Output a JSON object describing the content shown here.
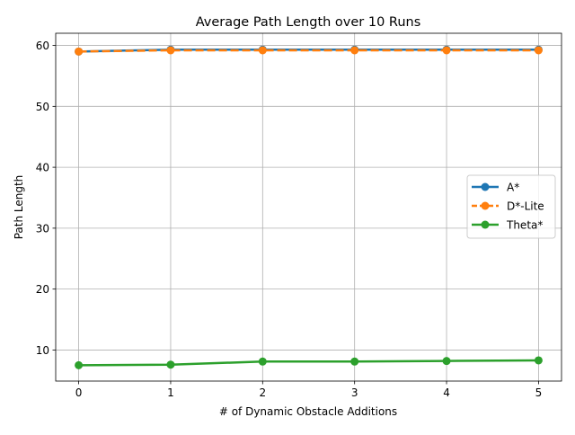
{
  "chart_data": {
    "type": "line",
    "title": "Average Path Length over 10 Runs",
    "xlabel": "# of Dynamic Obstacle Additions",
    "ylabel": "Path Length",
    "x": [
      0,
      1,
      2,
      3,
      4,
      5
    ],
    "xticks": [
      "0",
      "1",
      "2",
      "3",
      "4",
      "5"
    ],
    "yticks": [
      "10",
      "20",
      "30",
      "40",
      "50",
      "60"
    ],
    "xlim": [
      -0.25,
      5.25
    ],
    "ylim": [
      4.9,
      62.0
    ],
    "grid": true,
    "legend_position": "center-right",
    "series": [
      {
        "name": "A*",
        "color": "#1f77b4",
        "linestyle": "solid",
        "marker": "circle",
        "values": [
          59.0,
          59.3,
          59.3,
          59.3,
          59.3,
          59.3
        ]
      },
      {
        "name": "D*-Lite",
        "color": "#ff7f0e",
        "linestyle": "dashed",
        "marker": "circle",
        "values": [
          59.0,
          59.2,
          59.2,
          59.2,
          59.2,
          59.2
        ]
      },
      {
        "name": "Theta*",
        "color": "#2ca02c",
        "linestyle": "solid",
        "marker": "circle",
        "values": [
          7.5,
          7.6,
          8.1,
          8.1,
          8.2,
          8.3
        ]
      }
    ]
  }
}
